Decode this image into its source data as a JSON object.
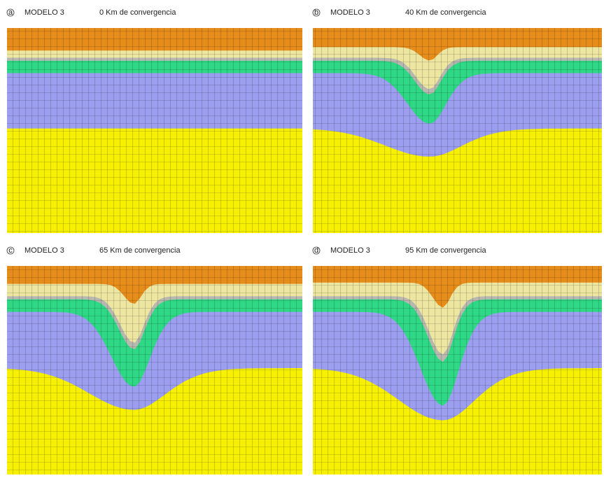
{
  "panels": [
    {
      "letter": "a",
      "model": "MODELO 3",
      "convergence": "0 Km de convergencia"
    },
    {
      "letter": "b",
      "model": "MODELO 3",
      "convergence": "40 Km de convergencia"
    },
    {
      "letter": "c",
      "model": "MODELO 3",
      "convergence": "65 Km de convergencia"
    },
    {
      "letter": "d",
      "model": "MODELO 3",
      "convergence": "95 Km de convergencia"
    }
  ]
}
